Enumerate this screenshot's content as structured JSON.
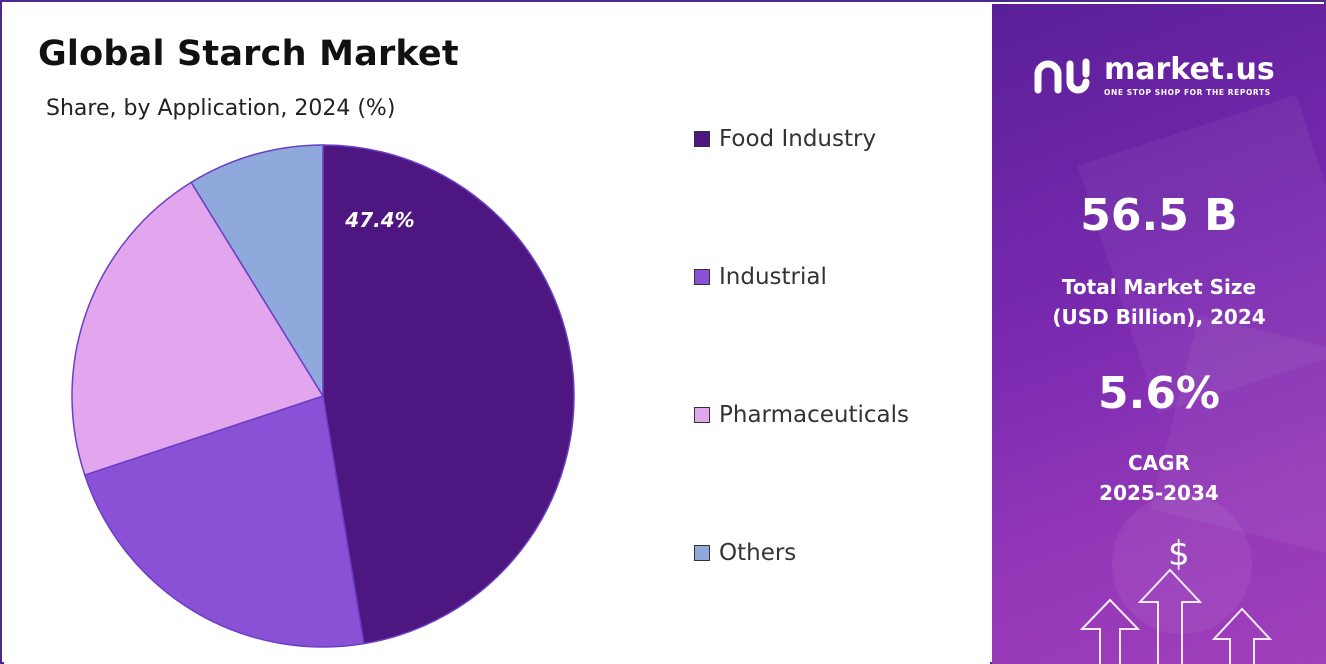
{
  "chart_data": {
    "type": "pie",
    "title": "Global Starch Market",
    "subtitle": "Share, by Application, 2024 (%)",
    "slices": [
      {
        "name": "Food Industry",
        "value": 47.4,
        "color": "#4e1681",
        "label": "47.4%"
      },
      {
        "name": "Industrial",
        "value": 22.5,
        "color": "#8a50d6",
        "label": ""
      },
      {
        "name": "Pharmaceuticals",
        "value": 21.3,
        "color": "#e2a6ee",
        "label": ""
      },
      {
        "name": "Others",
        "value": 8.8,
        "color": "#8fa9dc",
        "label": ""
      }
    ],
    "legend_placement": "right"
  },
  "brand": {
    "name": "market.us",
    "tagline": "ONE STOP SHOP FOR THE REPORTS"
  },
  "metrics": {
    "market_size": "56.5 B",
    "market_size_label_line1": "Total Market Size",
    "market_size_label_line2": "(USD Billion), 2024",
    "cagr": "5.6%",
    "cagr_label_line1": "CAGR",
    "cagr_label_line2": "2025-2034"
  },
  "decor": {
    "dollar_symbol": "$"
  }
}
